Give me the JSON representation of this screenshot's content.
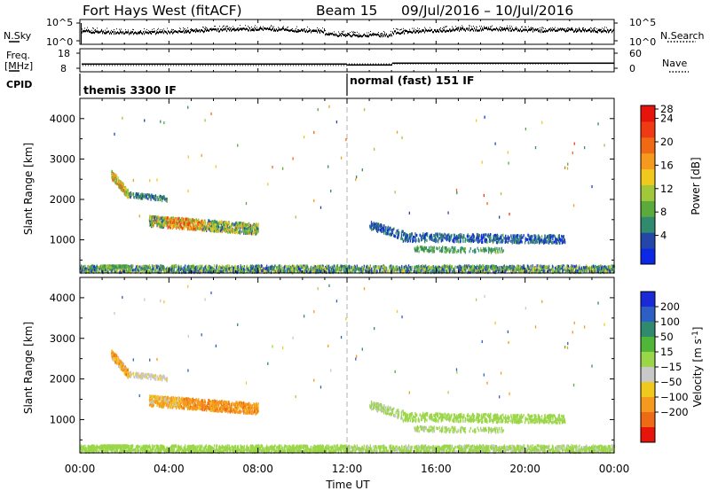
{
  "header": {
    "station": "Fort Hays West (fitACF)",
    "beam": "Beam 15",
    "daterange": "09/Jul/2016 – 10/Jul/2016"
  },
  "noise_panel": {
    "left_label": "N.Sky",
    "left_ticks": [
      "10^5",
      "10^0"
    ],
    "right_label": "N.Search",
    "right_ticks": [
      "10^5",
      "10^0"
    ]
  },
  "freq_panel": {
    "left_label_top": "Freq.",
    "left_label_bottom": "[MHz]",
    "left_ticks": [
      "18",
      "8"
    ],
    "right_label": "Nave",
    "right_ticks": [
      "60",
      "0"
    ]
  },
  "cpid": {
    "label": "CPID",
    "segments": [
      {
        "name": "themis 3300 IF",
        "start_hour": 0
      },
      {
        "name": "normal (fast) 151 IF",
        "start_hour": 12
      }
    ]
  },
  "chart_data": [
    {
      "type": "heatmap",
      "name": "power",
      "ylabel": "Slant Range [km]",
      "y_ticks": [
        1000,
        2000,
        3000,
        4000
      ],
      "ylim": [
        180,
        4500
      ],
      "xlim_hours": [
        0,
        24
      ],
      "colorbar_label": "Power [dB]",
      "colorbar_ticks": [
        4,
        8,
        12,
        16,
        20,
        24,
        28
      ],
      "colorbar_colors": [
        "#0a28e6",
        "#2446a8",
        "#2f8a6e",
        "#5bab3c",
        "#a2c83a",
        "#f0c81e",
        "#f59a1e",
        "#f06a14",
        "#ef3a14",
        "#e6140a"
      ]
    },
    {
      "type": "heatmap",
      "name": "velocity",
      "ylabel": "Slant Range [km]",
      "y_ticks": [
        1000,
        2000,
        3000,
        4000
      ],
      "ylim": [
        180,
        4500
      ],
      "xlim_hours": [
        0,
        24
      ],
      "xlabel": "Time UT",
      "x_ticks": [
        "00:00",
        "04:00",
        "08:00",
        "12:00",
        "16:00",
        "20:00",
        "00:00"
      ],
      "colorbar_label": "Velocity [m s^-1]",
      "colorbar_ticks": [
        200,
        100,
        50,
        15,
        -15,
        -50,
        -100,
        -200
      ],
      "colorbar_colors": [
        "#1a2ad6",
        "#2e5fc4",
        "#2f8a6e",
        "#4fb63a",
        "#9ad648",
        "#c8c8c8",
        "#f0c81e",
        "#f59a1e",
        "#ef6a14",
        "#e6140a"
      ]
    }
  ]
}
